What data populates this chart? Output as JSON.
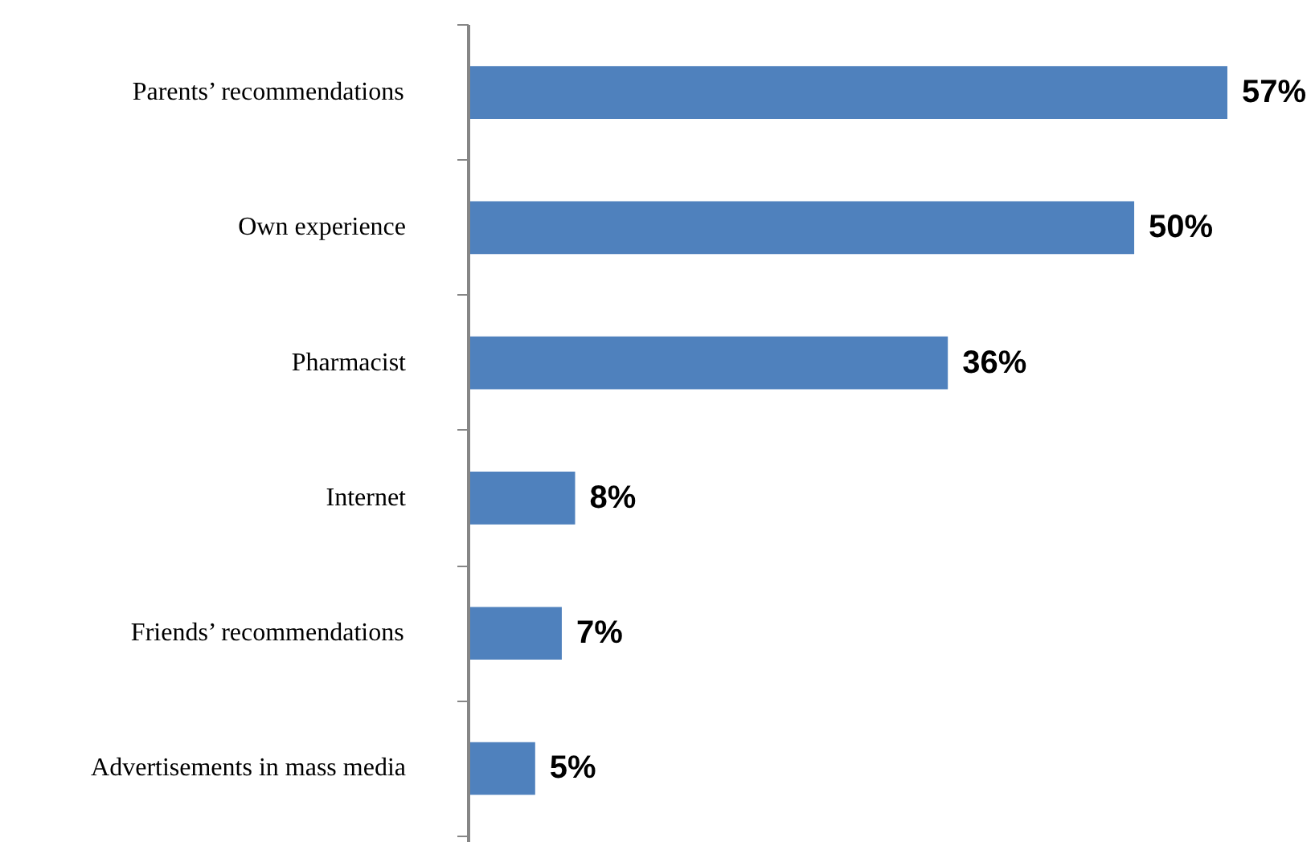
{
  "chart_data": {
    "type": "bar",
    "orientation": "horizontal",
    "categories": [
      "Parents’ recommendations",
      "Own experience",
      "Pharmacist",
      "Internet",
      "Friends’ recommendations",
      "Advertisements in mass media"
    ],
    "values": [
      57,
      50,
      36,
      8,
      7,
      5
    ],
    "value_labels": [
      "57%",
      "50%",
      "36%",
      "8%",
      "7%",
      "5%"
    ],
    "color": "#4f81bd"
  }
}
